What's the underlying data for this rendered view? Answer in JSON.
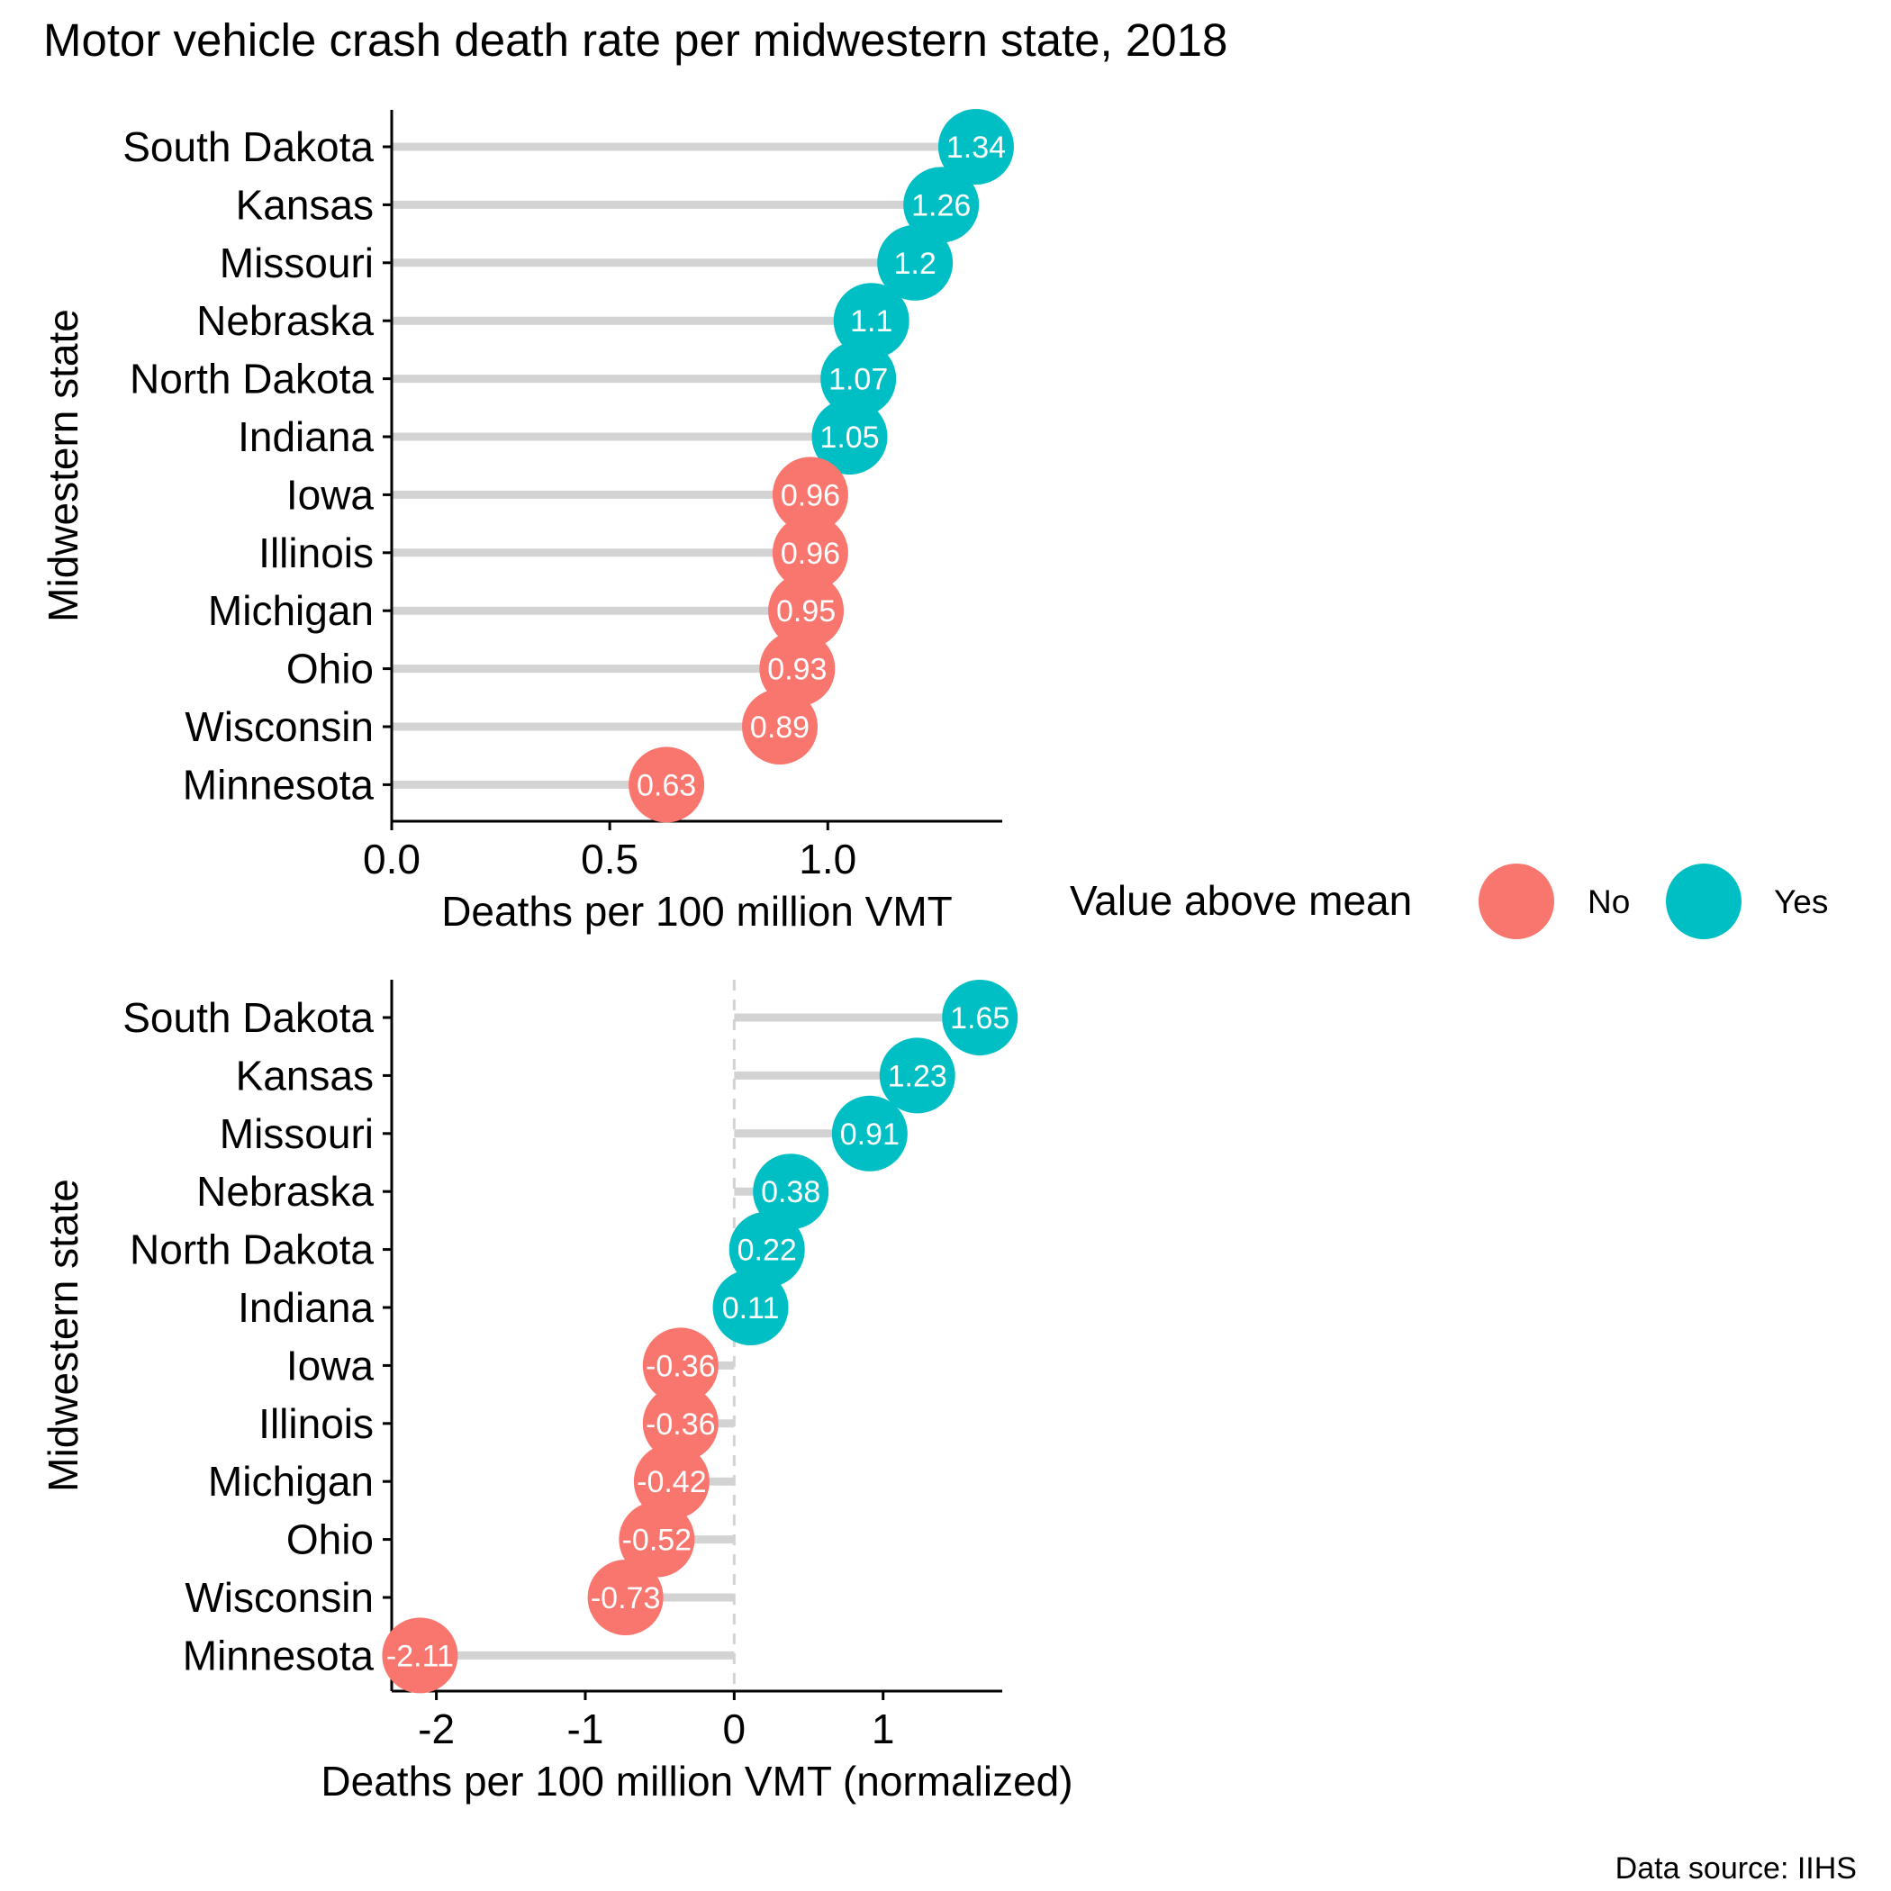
{
  "title": "Motor vehicle crash death rate per midwestern state, 2018",
  "caption": "Data source: IIHS",
  "colors": {
    "no": "#F8766D",
    "yes": "#00BFC4",
    "segment": "#D3D3D3",
    "axis": "#000000",
    "zero_line": "#D3D3D3"
  },
  "legend": {
    "title": "Value above mean",
    "placement": "right",
    "items": [
      {
        "label": "No",
        "color": "#F8766D"
      },
      {
        "label": "Yes",
        "color": "#00BFC4"
      }
    ]
  },
  "chart_data": [
    {
      "type": "lollipop",
      "xlabel": "Deaths per 100 million VMT",
      "ylabel": "Midwestern state",
      "xlim": [
        0,
        1.4
      ],
      "xticks": [
        0.0,
        0.5,
        1.0
      ],
      "xtick_labels": [
        "0.0",
        "0.5",
        "1.0"
      ],
      "baseline": 0,
      "reference_line": false,
      "categories": [
        "South Dakota",
        "Kansas",
        "Missouri",
        "Nebraska",
        "North Dakota",
        "Indiana",
        "Iowa",
        "Illinois",
        "Michigan",
        "Ohio",
        "Wisconsin",
        "Minnesota"
      ],
      "values": [
        1.34,
        1.26,
        1.2,
        1.1,
        1.07,
        1.05,
        0.96,
        0.96,
        0.95,
        0.93,
        0.89,
        0.63
      ],
      "labels": [
        "1.34",
        "1.26",
        "1.2",
        "1.1",
        "1.07",
        "1.05",
        "0.96",
        "0.96",
        "0.95",
        "0.93",
        "0.89",
        "0.63"
      ],
      "above_mean": [
        "Yes",
        "Yes",
        "Yes",
        "Yes",
        "Yes",
        "Yes",
        "No",
        "No",
        "No",
        "No",
        "No",
        "No"
      ],
      "grid": false
    },
    {
      "type": "lollipop",
      "xlabel": "Deaths per 100 million VMT (normalized)",
      "ylabel": "Midwestern state",
      "xlim": [
        -2.3,
        1.8
      ],
      "xticks": [
        -2,
        -1,
        0,
        1
      ],
      "xtick_labels": [
        "-2",
        "-1",
        "0",
        "1"
      ],
      "baseline": 0,
      "reference_line": true,
      "categories": [
        "South Dakota",
        "Kansas",
        "Missouri",
        "Nebraska",
        "North Dakota",
        "Indiana",
        "Iowa",
        "Illinois",
        "Michigan",
        "Ohio",
        "Wisconsin",
        "Minnesota"
      ],
      "values": [
        1.65,
        1.23,
        0.91,
        0.38,
        0.22,
        0.11,
        -0.36,
        -0.36,
        -0.42,
        -0.52,
        -0.73,
        -2.11
      ],
      "labels": [
        "1.65",
        "1.23",
        "0.91",
        "0.38",
        "0.22",
        "0.11",
        "-0.36",
        "-0.36",
        "-0.42",
        "-0.52",
        "-0.73",
        "-2.11"
      ],
      "above_mean": [
        "Yes",
        "Yes",
        "Yes",
        "Yes",
        "Yes",
        "Yes",
        "No",
        "No",
        "No",
        "No",
        "No",
        "No"
      ],
      "grid": false
    }
  ]
}
